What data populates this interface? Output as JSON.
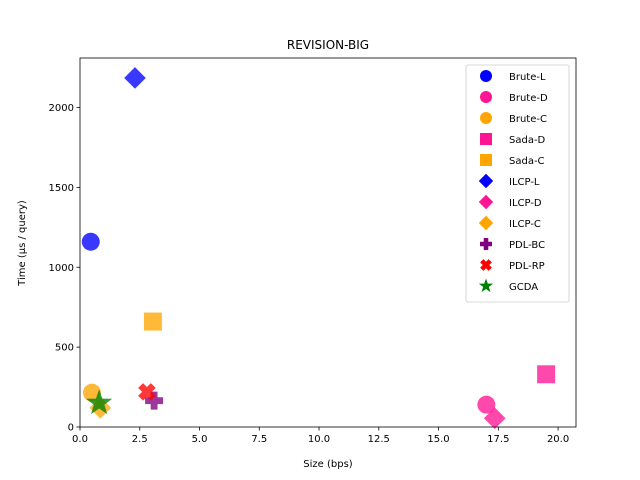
{
  "chart_data": {
    "type": "scatter",
    "title": "REVISION-BIG",
    "xlabel": "Size (bps)",
    "ylabel": "Time (µs / query)",
    "xlim": [
      0,
      20.75
    ],
    "ylim": [
      0,
      2310
    ],
    "x_ticks": [
      0,
      2.5,
      5,
      7.5,
      10,
      12.5,
      15,
      17.5,
      20
    ],
    "x_tick_labels": [
      "0.0",
      "2.5",
      "5.0",
      "7.5",
      "10.0",
      "12.5",
      "15.0",
      "17.5",
      "20.0"
    ],
    "y_ticks": [
      0,
      500,
      1000,
      1500,
      2000
    ],
    "y_tick_labels": [
      "0",
      "500",
      "1000",
      "1500",
      "2000"
    ],
    "grid": false,
    "legend_position": "top-right",
    "series": [
      {
        "name": "Brute-L",
        "marker": "circle",
        "color": "#0000ff",
        "points": [
          {
            "x": 0.45,
            "y": 1160
          }
        ]
      },
      {
        "name": "Brute-D",
        "marker": "circle",
        "color": "#ff1493",
        "points": [
          {
            "x": 17.0,
            "y": 140
          }
        ]
      },
      {
        "name": "Brute-C",
        "marker": "circle",
        "color": "#ffa500",
        "points": [
          {
            "x": 0.5,
            "y": 215
          }
        ]
      },
      {
        "name": "Sada-D",
        "marker": "square",
        "color": "#ff1493",
        "points": [
          {
            "x": 19.5,
            "y": 330
          }
        ]
      },
      {
        "name": "Sada-C",
        "marker": "square",
        "color": "#ffa500",
        "points": [
          {
            "x": 3.05,
            "y": 660
          }
        ]
      },
      {
        "name": "ILCP-L",
        "marker": "diamond",
        "color": "#0000ff",
        "points": [
          {
            "x": 2.3,
            "y": 2185
          }
        ]
      },
      {
        "name": "ILCP-D",
        "marker": "diamond",
        "color": "#ff1493",
        "points": [
          {
            "x": 17.35,
            "y": 55
          }
        ]
      },
      {
        "name": "ILCP-C",
        "marker": "diamond",
        "color": "#ffa500",
        "points": [
          {
            "x": 0.85,
            "y": 120
          }
        ]
      },
      {
        "name": "PDL-BC",
        "marker": "plus",
        "color": "#800080",
        "points": [
          {
            "x": 3.1,
            "y": 165
          }
        ]
      },
      {
        "name": "PDL-RP",
        "marker": "x",
        "color": "#ff0000",
        "points": [
          {
            "x": 2.8,
            "y": 220
          }
        ]
      },
      {
        "name": "GCDA",
        "marker": "star",
        "color": "#008000",
        "points": [
          {
            "x": 0.8,
            "y": 150
          }
        ]
      }
    ]
  }
}
